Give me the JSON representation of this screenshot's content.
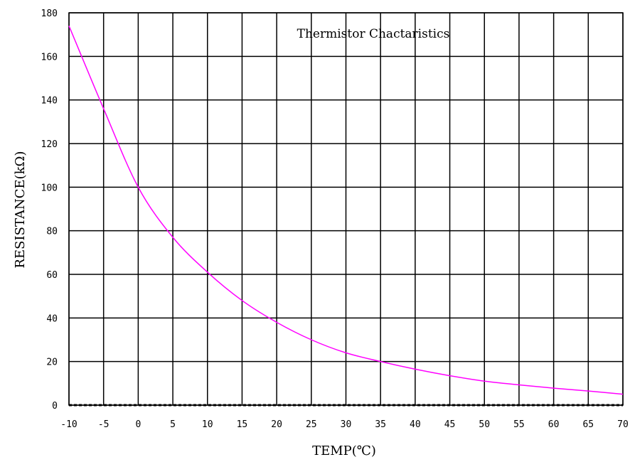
{
  "chart_data": {
    "type": "line",
    "title": "Thermistor Chactaristics",
    "xlabel": "TEMP(℃)",
    "ylabel": "RESISTANCE(kΩ)",
    "xlim": [
      -10,
      70
    ],
    "ylim": [
      0,
      180
    ],
    "x_ticks": [
      "-10",
      "-5",
      "0",
      "5",
      "10",
      "15",
      "20",
      "25",
      "30",
      "35",
      "40",
      "45",
      "50",
      "55",
      "60",
      "65",
      "70"
    ],
    "y_ticks": [
      "0",
      "20",
      "40",
      "60",
      "80",
      "100",
      "120",
      "140",
      "160",
      "180"
    ],
    "grid": true,
    "series": [
      {
        "color": "#ff00ff",
        "x": [
          -10,
          -5,
          0,
          5,
          10,
          15,
          20,
          25,
          30,
          35,
          40,
          45,
          50,
          55,
          60,
          65,
          70
        ],
        "y": [
          174,
          136,
          100,
          77,
          61,
          48,
          38,
          30,
          24,
          20,
          16.5,
          13.5,
          11,
          9.3,
          7.8,
          6.5,
          5
        ]
      }
    ]
  }
}
